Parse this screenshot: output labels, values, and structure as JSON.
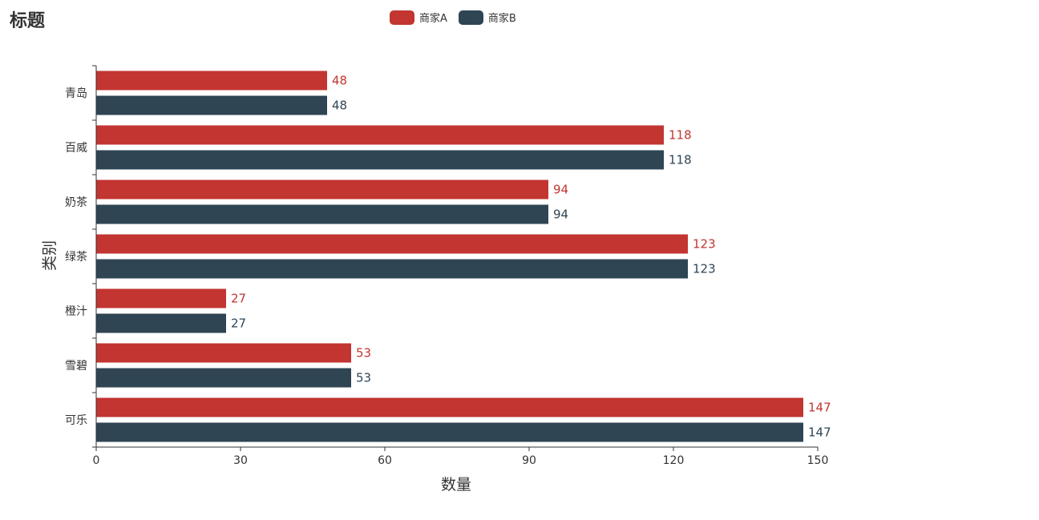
{
  "chart_data": {
    "type": "bar",
    "orientation": "horizontal",
    "title": "标题",
    "xlabel": "数量",
    "ylabel": "类别",
    "categories": [
      "可乐",
      "雪碧",
      "橙汁",
      "绿茶",
      "奶茶",
      "百威",
      "青岛"
    ],
    "series": [
      {
        "name": "商家A",
        "color": "#c23531",
        "values": [
          147,
          53,
          27,
          123,
          94,
          118,
          48
        ]
      },
      {
        "name": "商家B",
        "color": "#2f4554",
        "values": [
          147,
          53,
          27,
          123,
          94,
          118,
          48
        ]
      }
    ],
    "xlim": [
      0,
      150
    ],
    "xticks": [
      "0",
      "30",
      "60",
      "90",
      "120",
      "150"
    ],
    "grid": false,
    "legend_position": "top-center",
    "data_labels": true
  }
}
